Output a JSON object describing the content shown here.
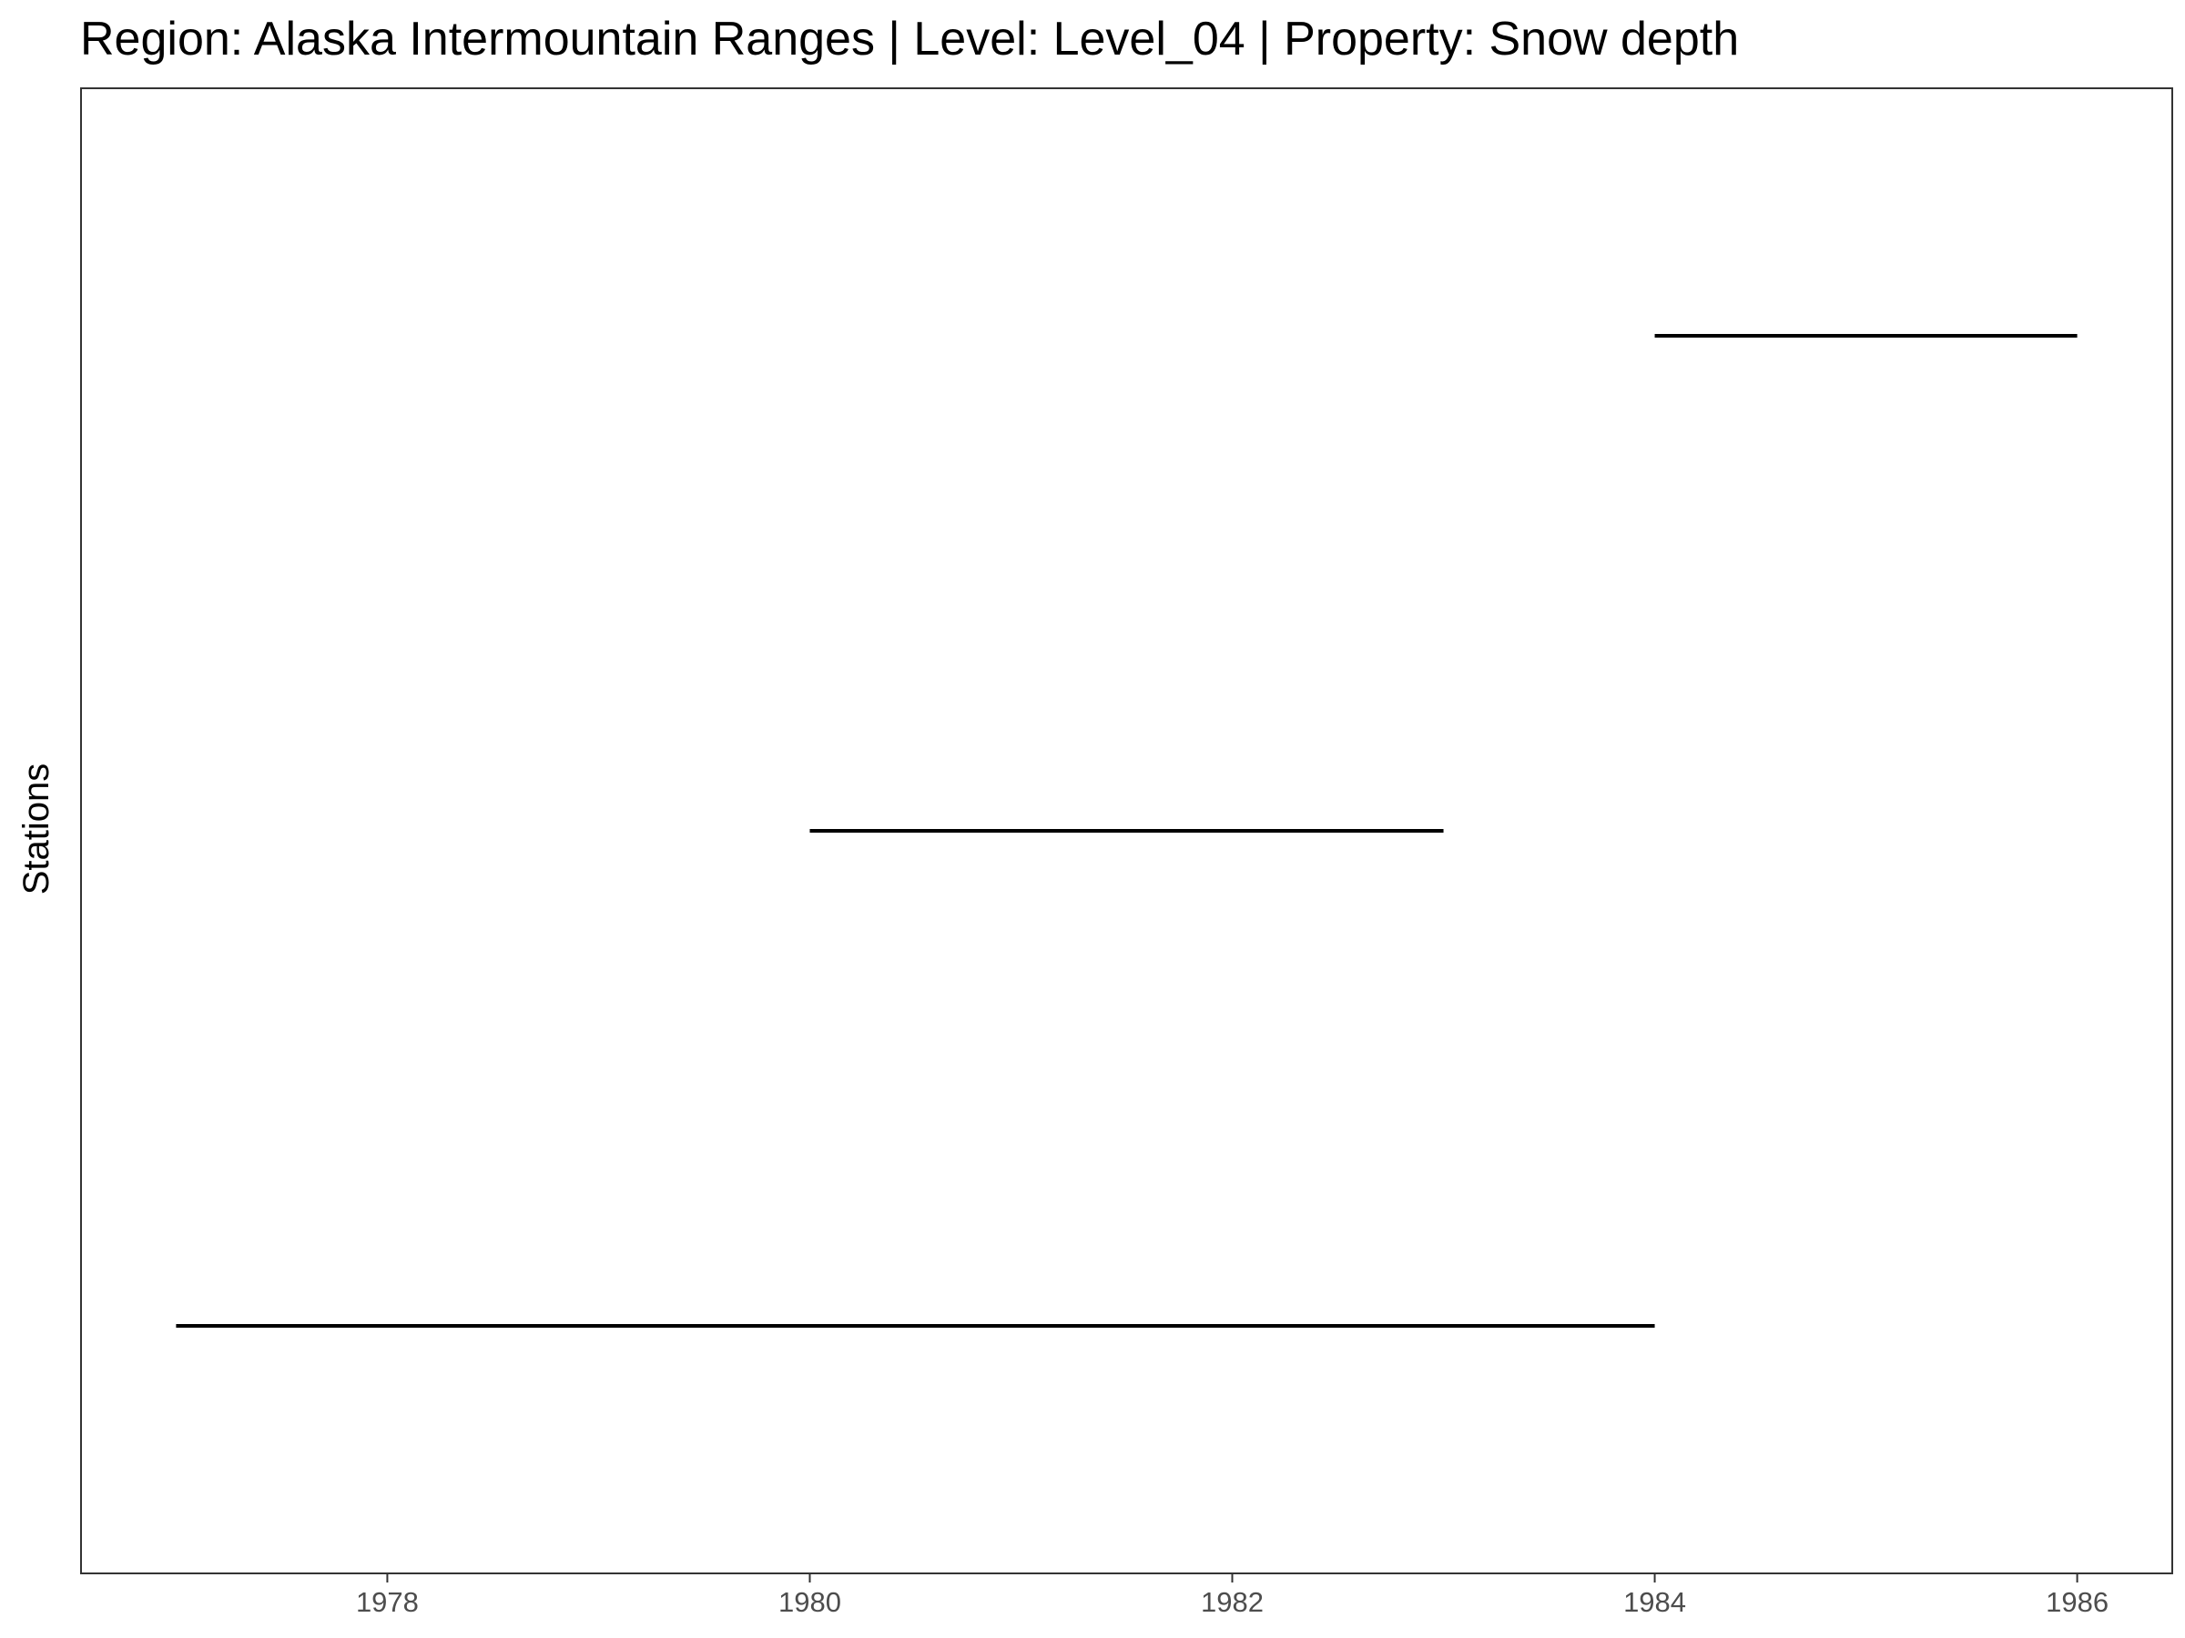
{
  "chart_data": {
    "type": "line",
    "title": "Region: Alaska Intermountain Ranges | Level: Level_04 | Property: Snow depth",
    "xlabel": "",
    "ylabel": "Stations",
    "xlim": [
      1976.55,
      1986.45
    ],
    "ylim": [
      0.5,
      3.5
    ],
    "x_ticks": [
      1978,
      1980,
      1982,
      1984,
      1986
    ],
    "x_tick_labels": [
      "1978",
      "1980",
      "1982",
      "1984",
      "1986"
    ],
    "grid": false,
    "legend": "none",
    "line_color": "#000000",
    "segments": [
      {
        "station": 1,
        "start": 1977,
        "end": 1984
      },
      {
        "station": 2,
        "start": 1980,
        "end": 1983
      },
      {
        "station": 3,
        "start": 1984,
        "end": 1986
      }
    ]
  }
}
